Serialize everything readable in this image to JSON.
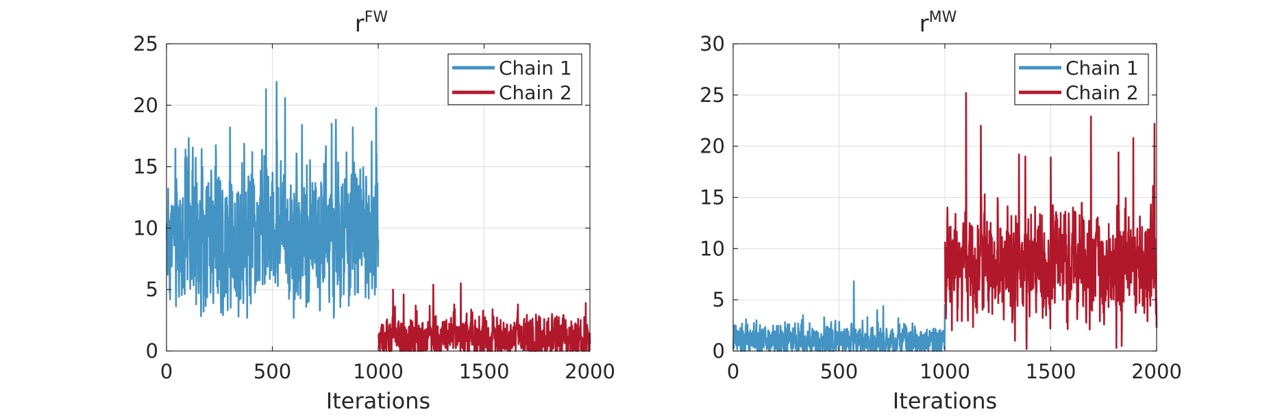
{
  "chart_data": [
    {
      "type": "line",
      "title": "r",
      "title_superscript": "FW",
      "xlabel": "Iterations",
      "ylabel": "",
      "xlim": [
        0,
        2000
      ],
      "ylim": [
        0,
        25
      ],
      "xticks": [
        0,
        500,
        1000,
        1500,
        2000
      ],
      "yticks": [
        0,
        5,
        10,
        15,
        20,
        25
      ],
      "grid": true,
      "legend_position": "top-right",
      "series": [
        {
          "name": "Chain 1",
          "color": "#4393c3",
          "x_range": [
            1,
            1000
          ],
          "baseline": 9.5,
          "spread": 2.6,
          "min": 2.7,
          "max": 21.9,
          "peaks": [
            [
              470,
              21.3
            ],
            [
              520,
              21.9
            ],
            [
              560,
              20.6
            ],
            [
              780,
              18.5
            ],
            [
              990,
              19.8
            ],
            [
              300,
              18.2
            ],
            [
              640,
              18.4
            ],
            [
              880,
              18.2
            ],
            [
              90,
              16.4
            ],
            [
              230,
              15.0
            ]
          ],
          "troughs": [
            [
              340,
              2.8
            ],
            [
              790,
              2.7
            ],
            [
              140,
              3.8
            ],
            [
              660,
              3.6
            ]
          ]
        },
        {
          "name": "Chain 2",
          "color": "#b2182b",
          "x_range": [
            1001,
            2000
          ],
          "baseline": 1.0,
          "spread": 0.8,
          "min": 0,
          "max": 5.5,
          "peaks": [
            [
              1070,
              5.0
            ],
            [
              1260,
              5.4
            ],
            [
              1390,
              5.5
            ],
            [
              1120,
              4.6
            ],
            [
              1660,
              3.8
            ],
            [
              1980,
              3.9
            ],
            [
              1540,
              3.4
            ]
          ],
          "troughs": []
        }
      ]
    },
    {
      "type": "line",
      "title": "r",
      "title_superscript": "MW",
      "xlabel": "Iterations",
      "ylabel": "",
      "xlim": [
        0,
        2000
      ],
      "ylim": [
        0,
        30
      ],
      "xticks": [
        0,
        500,
        1000,
        1500,
        2000
      ],
      "yticks": [
        0,
        5,
        10,
        15,
        20,
        25,
        30
      ],
      "grid": true,
      "legend_position": "top-right",
      "series": [
        {
          "name": "Chain 1",
          "color": "#4393c3",
          "x_range": [
            1,
            1000
          ],
          "baseline": 1.0,
          "spread": 0.7,
          "min": 0,
          "max": 6.8,
          "peaks": [
            [
              570,
              6.8
            ],
            [
              680,
              4.0
            ],
            [
              1000,
              4.6
            ],
            [
              330,
              3.5
            ],
            [
              430,
              3.3
            ],
            [
              110,
              3.0
            ],
            [
              780,
              3.2
            ]
          ],
          "troughs": []
        },
        {
          "name": "Chain 2",
          "color": "#b2182b",
          "x_range": [
            1001,
            2000
          ],
          "baseline": 8.5,
          "spread": 2.3,
          "min": 0.2,
          "max": 25.2,
          "peaks": [
            [
              1100,
              25.2
            ],
            [
              1170,
              22.0
            ],
            [
              1690,
              22.9
            ],
            [
              1990,
              22.2
            ],
            [
              1890,
              20.8
            ],
            [
              1820,
              19.4
            ],
            [
              1500,
              18.9
            ],
            [
              1350,
              19.2
            ],
            [
              1380,
              19.0
            ]
          ],
          "troughs": [
            [
              1810,
              0.3
            ],
            [
              1835,
              0.5
            ],
            [
              1385,
              1.6
            ]
          ]
        }
      ]
    }
  ]
}
